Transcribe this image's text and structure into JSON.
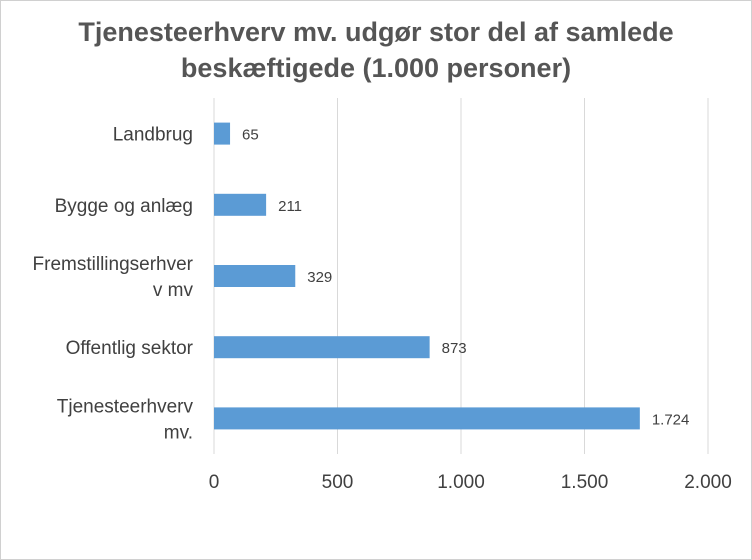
{
  "chart_data": {
    "type": "bar",
    "orientation": "horizontal",
    "title_lines": [
      "Tjenesteerhverv mv. udgør stor del af samlede",
      "beskæftigede (1.000 personer)"
    ],
    "categories": [
      [
        "Landbrug"
      ],
      [
        "Bygge og anlæg"
      ],
      [
        "Fremstillingserhver",
        "v mv"
      ],
      [
        "Offentlig sektor"
      ],
      [
        "Tjenesteerhverv",
        "mv."
      ]
    ],
    "values": [
      65,
      211,
      329,
      873,
      1724
    ],
    "data_labels": [
      "65",
      "211",
      "329",
      "873",
      "1.724"
    ],
    "xlim": [
      0,
      2000
    ],
    "x_ticks": [
      0,
      500,
      1000,
      1500,
      2000
    ],
    "x_tick_labels": [
      "0",
      "500",
      "1.000",
      "1.500",
      "2.000"
    ],
    "grid": "vertical",
    "legend": "none",
    "bar_color": "#5b9bd5",
    "grid_color": "#d9d9d9"
  }
}
